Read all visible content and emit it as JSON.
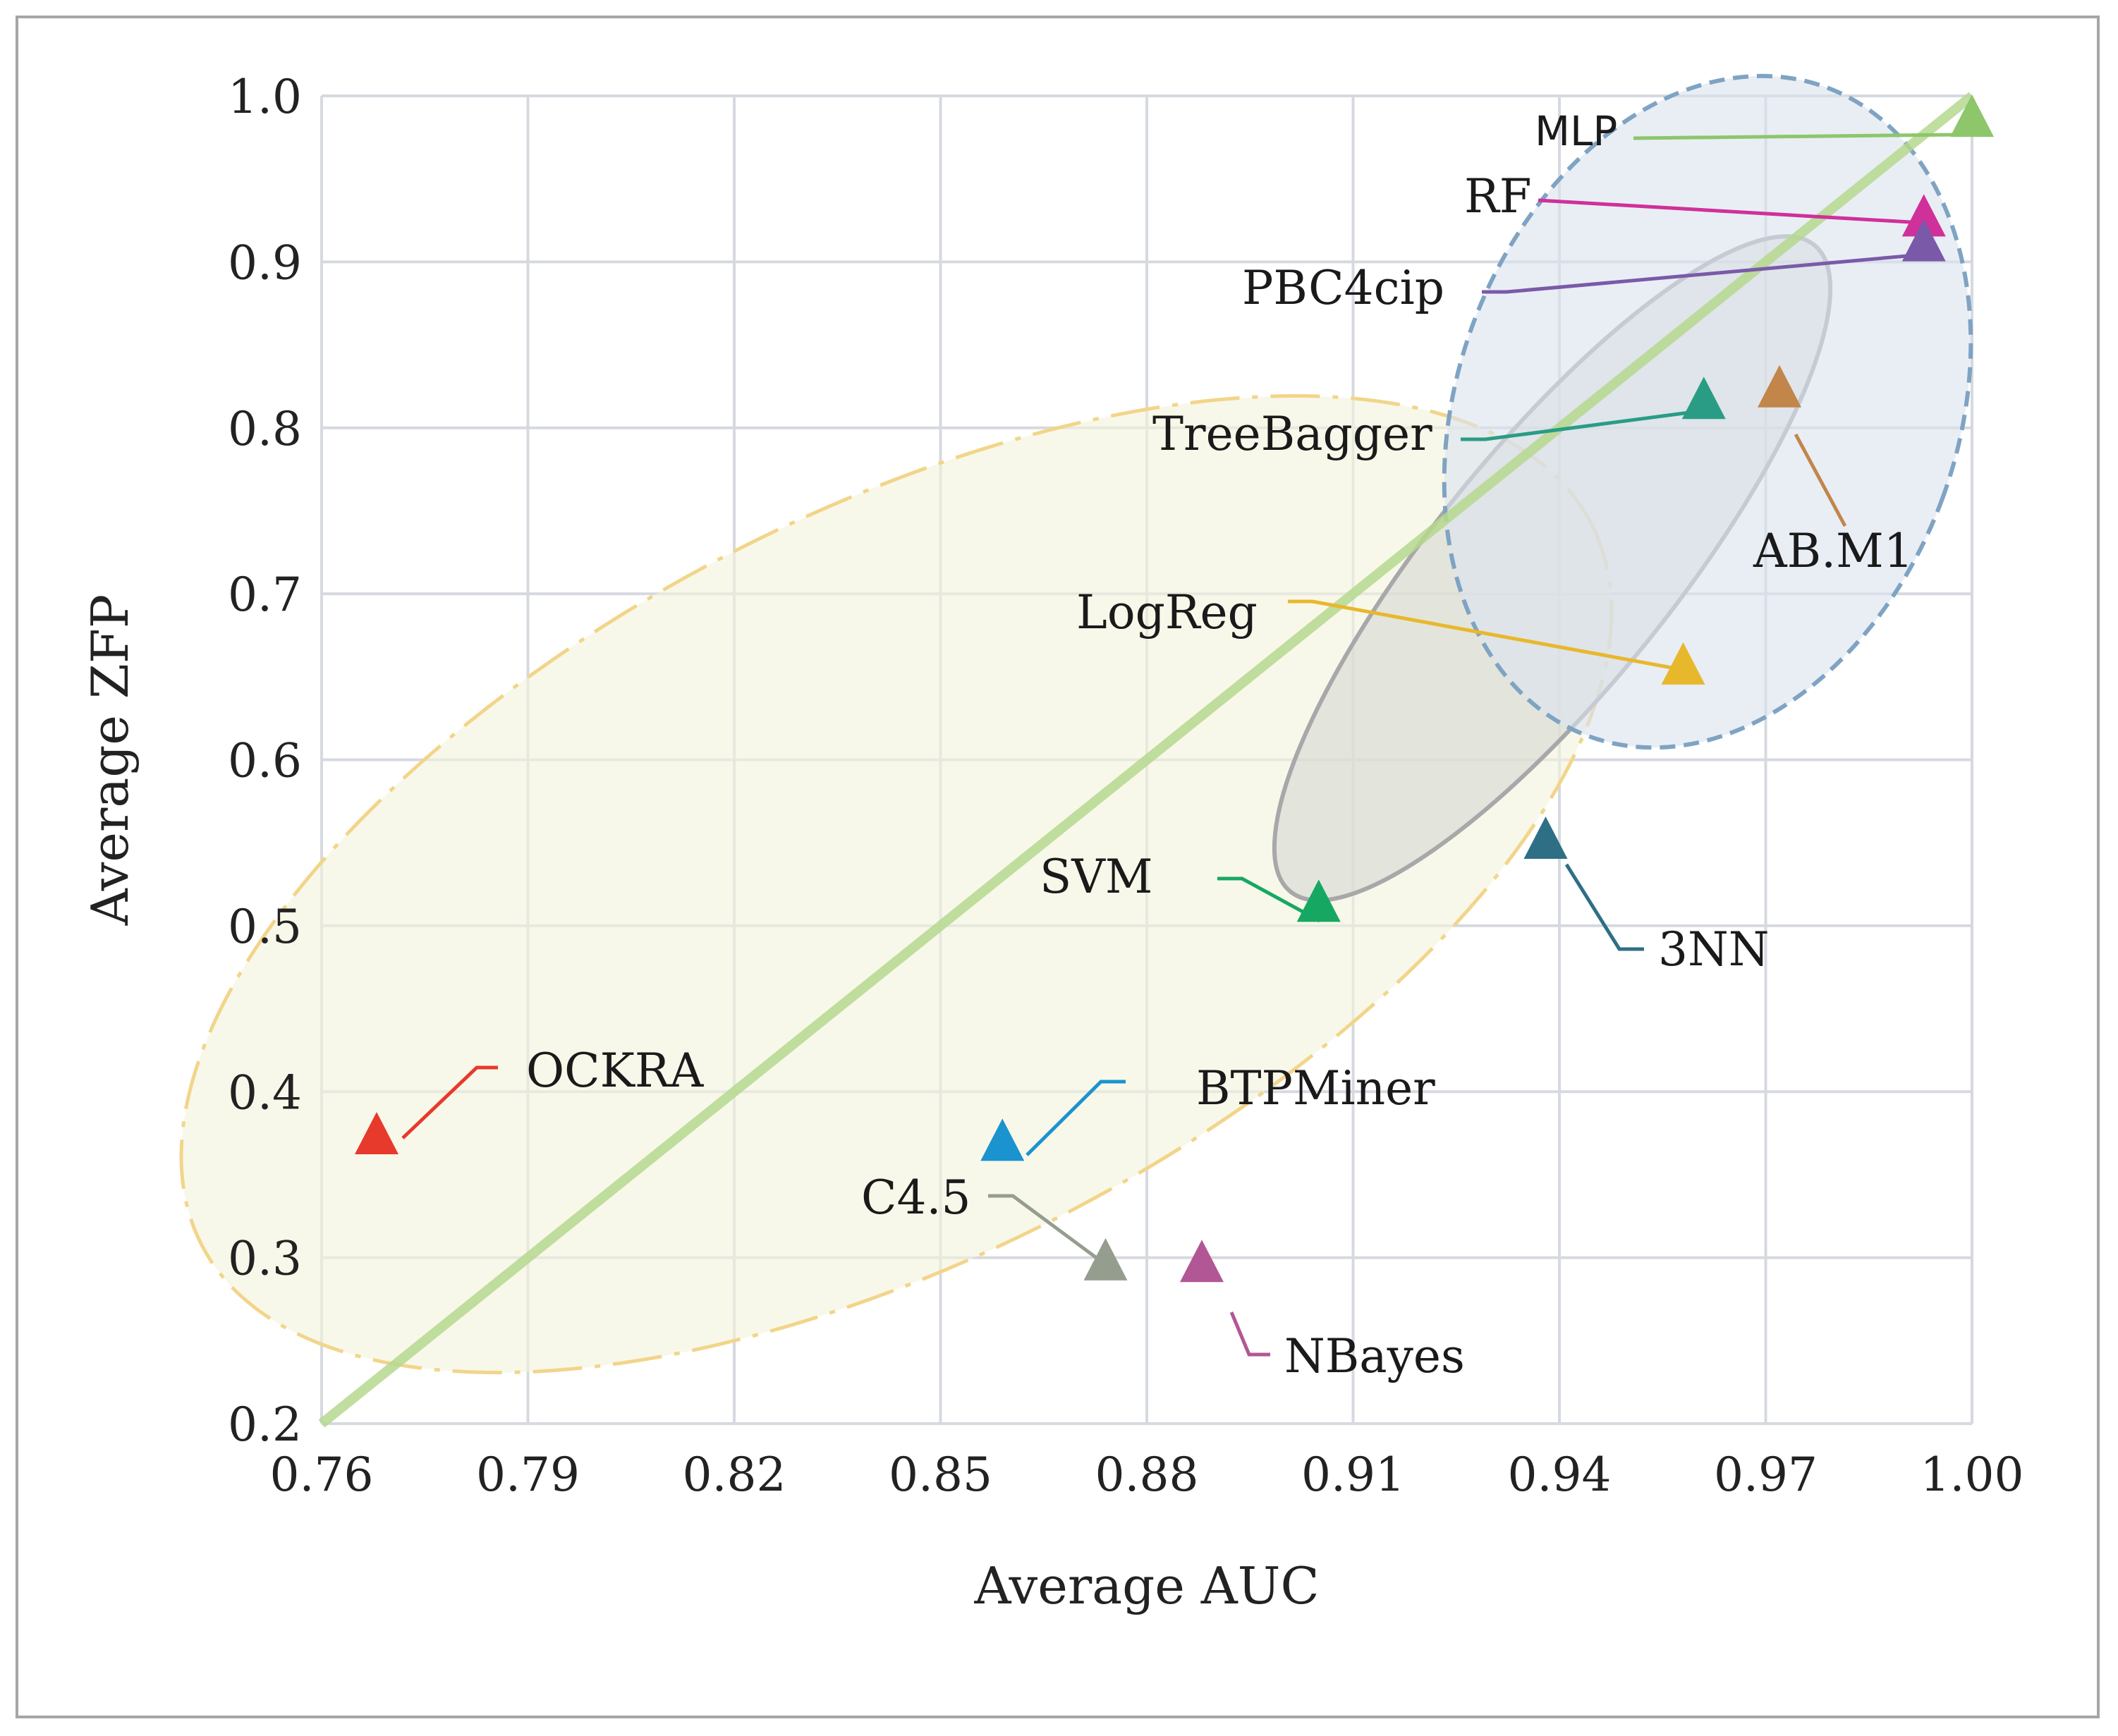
{
  "chart_data": {
    "type": "scatter",
    "title": "",
    "xlabel": "Average AUC",
    "ylabel": "Average ZFP",
    "xlim": [
      0.76,
      1.0
    ],
    "ylim": [
      0.2,
      1.0
    ],
    "xticks": [
      0.76,
      0.79,
      0.82,
      0.85,
      0.88,
      0.91,
      0.94,
      0.97,
      1.0
    ],
    "xtick_labels": [
      "0.76",
      "0.79",
      "0.82",
      "0.85",
      "0.88",
      "0.91",
      "0.94",
      "0.97",
      "1.00"
    ],
    "yticks": [
      0.2,
      0.3,
      0.4,
      0.5,
      0.6,
      0.7,
      0.8,
      0.9,
      1.0
    ],
    "ytick_labels": [
      "0.2",
      "0.3",
      "0.4",
      "0.5",
      "0.6",
      "0.7",
      "0.8",
      "0.9",
      "1.0"
    ],
    "grid": true,
    "marker": "triangle",
    "points": [
      {
        "name": "MLP",
        "x": 1.0,
        "y": 0.985,
        "color": "#8dc66b",
        "label_font": "sans"
      },
      {
        "name": "RF",
        "x": 0.993,
        "y": 0.925,
        "color": "#d0309a",
        "label_font": "serif"
      },
      {
        "name": "PBC4cip",
        "x": 0.993,
        "y": 0.91,
        "color": "#7a5aa8",
        "label_font": "serif"
      },
      {
        "name": "TreeBagger",
        "x": 0.961,
        "y": 0.815,
        "color": "#2a9c85",
        "label_font": "serif"
      },
      {
        "name": "AB.M1",
        "x": 0.972,
        "y": 0.822,
        "color": "#c2864a",
        "label_font": "serif"
      },
      {
        "name": "LogReg",
        "x": 0.958,
        "y": 0.655,
        "color": "#e8b82c",
        "label_font": "serif"
      },
      {
        "name": "3NN",
        "x": 0.938,
        "y": 0.55,
        "color": "#2e6f85",
        "label_font": "serif"
      },
      {
        "name": "SVM",
        "x": 0.905,
        "y": 0.512,
        "color": "#16a862",
        "label_font": "serif"
      },
      {
        "name": "OCKRA",
        "x": 0.768,
        "y": 0.372,
        "color": "#e8392d",
        "label_font": "serif"
      },
      {
        "name": "BTPMiner",
        "x": 0.859,
        "y": 0.368,
        "color": "#1b93cf",
        "label_font": "serif"
      },
      {
        "name": "C4.5",
        "x": 0.874,
        "y": 0.296,
        "color": "#959d8f",
        "label_font": "serif"
      },
      {
        "name": "NBayes",
        "x": 0.888,
        "y": 0.295,
        "color": "#b25795",
        "label_font": "serif"
      }
    ],
    "reference_line": {
      "from": [
        0.76,
        0.2
      ],
      "to": [
        1.0,
        1.0
      ],
      "color": "#b5d88e"
    },
    "regions": [
      {
        "name": "yellow-region",
        "fill": "#f3f3dc",
        "stroke": "#f2d58a",
        "style": "dash-dot"
      },
      {
        "name": "gray-region",
        "fill": "#d6d9d2",
        "stroke": "#a8a8aa",
        "style": "solid"
      },
      {
        "name": "blue-region",
        "fill": "#dbe3ee",
        "stroke": "#7fa3c3",
        "style": "dashed"
      }
    ],
    "colors": {
      "grid": "#d6d9e0",
      "axis_text": "#222222"
    }
  }
}
